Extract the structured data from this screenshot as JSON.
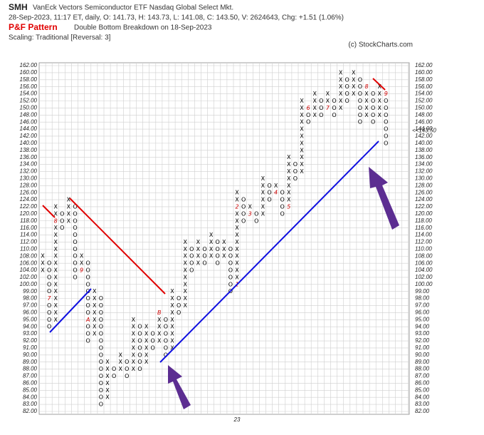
{
  "chart_data": {
    "type": "pnf",
    "symbol": "SMH",
    "name": "VanEck Vectors Semiconductor ETF  Nasdaq Global Select Mkt.",
    "quote": "28-Sep-2023, 11:17 ET, daily, O: 141.73, H: 143.73, L: 141.08, C: 143.50, V: 2624643, Chg: +1.51 (1.06%)",
    "pattern_label": "P&F Pattern",
    "pattern": "Double Bottom Breakdown on 18-Sep-2023",
    "scaling": "Scaling: Traditional [Reversal: 3]",
    "copyright": "(c) StockCharts.com",
    "current_box": 142,
    "current_price": {
      "value": 143.5,
      "label": "<<143.50"
    },
    "grid": true,
    "x_color": "#000000",
    "o_color": "#000000",
    "marker_color": "#cc0000",
    "ylim": [
      82,
      162
    ],
    "yticks": [
      {
        "value": 162,
        "label": "162.00"
      },
      {
        "value": 160,
        "label": "160.00"
      },
      {
        "value": 158,
        "label": "158.00"
      },
      {
        "value": 156,
        "label": "156.00"
      },
      {
        "value": 154,
        "label": "154.00"
      },
      {
        "value": 152,
        "label": "152.00"
      },
      {
        "value": 150,
        "label": "150.00"
      },
      {
        "value": 148,
        "label": "148.00"
      },
      {
        "value": 146,
        "label": "146.00"
      },
      {
        "value": 144,
        "label": "144.00"
      },
      {
        "value": 142,
        "label": "142.00"
      },
      {
        "value": 140,
        "label": "140.00"
      },
      {
        "value": 138,
        "label": "138.00"
      },
      {
        "value": 136,
        "label": "136.00"
      },
      {
        "value": 134,
        "label": "134.00"
      },
      {
        "value": 132,
        "label": "132.00"
      },
      {
        "value": 130,
        "label": "130.00"
      },
      {
        "value": 128,
        "label": "128.00"
      },
      {
        "value": 126,
        "label": "126.00"
      },
      {
        "value": 124,
        "label": "124.00"
      },
      {
        "value": 122,
        "label": "122.00"
      },
      {
        "value": 120,
        "label": "120.00"
      },
      {
        "value": 118,
        "label": "118.00"
      },
      {
        "value": 116,
        "label": "116.00"
      },
      {
        "value": 114,
        "label": "114.00"
      },
      {
        "value": 112,
        "label": "112.00"
      },
      {
        "value": 110,
        "label": "110.00"
      },
      {
        "value": 108,
        "label": "108.00"
      },
      {
        "value": 106,
        "label": "106.00"
      },
      {
        "value": 104,
        "label": "104.00"
      },
      {
        "value": 102,
        "label": "102.00"
      },
      {
        "value": 100,
        "label": "100.00"
      },
      {
        "value": 99,
        "label": "99.00"
      },
      {
        "value": 98,
        "label": "98.00"
      },
      {
        "value": 97,
        "label": "97.00"
      },
      {
        "value": 96,
        "label": "96.00"
      },
      {
        "value": 95,
        "label": "95.00"
      },
      {
        "value": 94,
        "label": "94.00"
      },
      {
        "value": 93,
        "label": "93.00"
      },
      {
        "value": 92,
        "label": "92.00"
      },
      {
        "value": 91,
        "label": "91.00"
      },
      {
        "value": 90,
        "label": "90.00"
      },
      {
        "value": 89,
        "label": "89.00"
      },
      {
        "value": 88,
        "label": "88.00"
      },
      {
        "value": 87,
        "label": "87.00"
      },
      {
        "value": 86,
        "label": "86.00"
      },
      {
        "value": 85,
        "label": "85.00"
      },
      {
        "value": 84,
        "label": "84.00"
      },
      {
        "value": 83,
        "label": "83.00"
      },
      {
        "value": 82,
        "label": "82.00"
      }
    ],
    "columns": [
      {
        "type": "X",
        "start": 104,
        "end": 108
      },
      {
        "type": "O",
        "start": 106,
        "end": 94,
        "markers": [
          {
            "price": 98,
            "label": "7"
          }
        ]
      },
      {
        "type": "X",
        "start": 95,
        "end": 122,
        "markers": [
          {
            "price": 118,
            "label": "8"
          }
        ]
      },
      {
        "type": "O",
        "start": 120,
        "end": 116
      },
      {
        "type": "X",
        "start": 118,
        "end": 124
      },
      {
        "type": "O",
        "start": 122,
        "end": 102
      },
      {
        "type": "X",
        "start": 104,
        "end": 108,
        "markers": [
          {
            "price": 104,
            "label": "9"
          }
        ]
      },
      {
        "type": "O",
        "start": 106,
        "end": 92,
        "markers": [
          {
            "price": 95,
            "label": "A"
          }
        ]
      },
      {
        "type": "X",
        "start": 93,
        "end": 99
      },
      {
        "type": "O",
        "start": 98,
        "end": 83
      },
      {
        "type": "X",
        "start": 84,
        "end": 89
      },
      {
        "type": "O",
        "start": 88,
        "end": 87
      },
      {
        "type": "X",
        "start": 88,
        "end": 90
      },
      {
        "type": "O",
        "start": 89,
        "end": 87
      },
      {
        "type": "X",
        "start": 88,
        "end": 95
      },
      {
        "type": "O",
        "start": 94,
        "end": 88
      },
      {
        "type": "X",
        "start": 89,
        "end": 94
      },
      {
        "type": "O",
        "start": 93,
        "end": 91
      },
      {
        "type": "X",
        "start": 92,
        "end": 96,
        "markers": [
          {
            "price": 96,
            "label": "B"
          }
        ]
      },
      {
        "type": "O",
        "start": 95,
        "end": 90
      },
      {
        "type": "X",
        "start": 91,
        "end": 99
      },
      {
        "type": "O",
        "start": 98,
        "end": 96
      },
      {
        "type": "X",
        "start": 97,
        "end": 112
      },
      {
        "type": "O",
        "start": 110,
        "end": 104
      },
      {
        "type": "X",
        "start": 106,
        "end": 112
      },
      {
        "type": "O",
        "start": 110,
        "end": 106
      },
      {
        "type": "X",
        "start": 108,
        "end": 114
      },
      {
        "type": "O",
        "start": 112,
        "end": 106
      },
      {
        "type": "X",
        "start": 108,
        "end": 112
      },
      {
        "type": "O",
        "start": 110,
        "end": 99
      },
      {
        "type": "X",
        "start": 100,
        "end": 126,
        "markers": [
          {
            "price": 100,
            "label": "1"
          },
          {
            "price": 122,
            "label": "2"
          }
        ],
        "year_label": "23"
      },
      {
        "type": "O",
        "start": 124,
        "end": 118
      },
      {
        "type": "X",
        "start": 120,
        "end": 122,
        "markers": [
          {
            "price": 120,
            "label": "3"
          }
        ]
      },
      {
        "type": "O",
        "start": 120,
        "end": 118
      },
      {
        "type": "X",
        "start": 120,
        "end": 130
      },
      {
        "type": "O",
        "start": 128,
        "end": 124
      },
      {
        "type": "X",
        "start": 126,
        "end": 128,
        "markers": [
          {
            "price": 126,
            "label": "4"
          }
        ]
      },
      {
        "type": "O",
        "start": 126,
        "end": 120
      },
      {
        "type": "X",
        "start": 122,
        "end": 136,
        "markers": [
          {
            "price": 122,
            "label": "5"
          }
        ]
      },
      {
        "type": "O",
        "start": 134,
        "end": 130
      },
      {
        "type": "X",
        "start": 132,
        "end": 152
      },
      {
        "type": "O",
        "start": 150,
        "end": 146,
        "markers": [
          {
            "price": 150,
            "label": "6"
          }
        ]
      },
      {
        "type": "X",
        "start": 148,
        "end": 154
      },
      {
        "type": "O",
        "start": 152,
        "end": 148
      },
      {
        "type": "X",
        "start": 150,
        "end": 154,
        "markers": [
          {
            "price": 150,
            "label": "7"
          }
        ]
      },
      {
        "type": "O",
        "start": 152,
        "end": 148
      },
      {
        "type": "X",
        "start": 150,
        "end": 160
      },
      {
        "type": "O",
        "start": 158,
        "end": 152
      },
      {
        "type": "X",
        "start": 154,
        "end": 160
      },
      {
        "type": "O",
        "start": 158,
        "end": 146
      },
      {
        "type": "X",
        "start": 148,
        "end": 156,
        "markers": [
          {
            "price": 156,
            "label": "8"
          }
        ]
      },
      {
        "type": "O",
        "start": 154,
        "end": 146
      },
      {
        "type": "X",
        "start": 148,
        "end": 156
      },
      {
        "type": "O",
        "start": 154,
        "end": 140,
        "markers": [
          {
            "price": 154,
            "label": "9"
          }
        ]
      }
    ]
  }
}
